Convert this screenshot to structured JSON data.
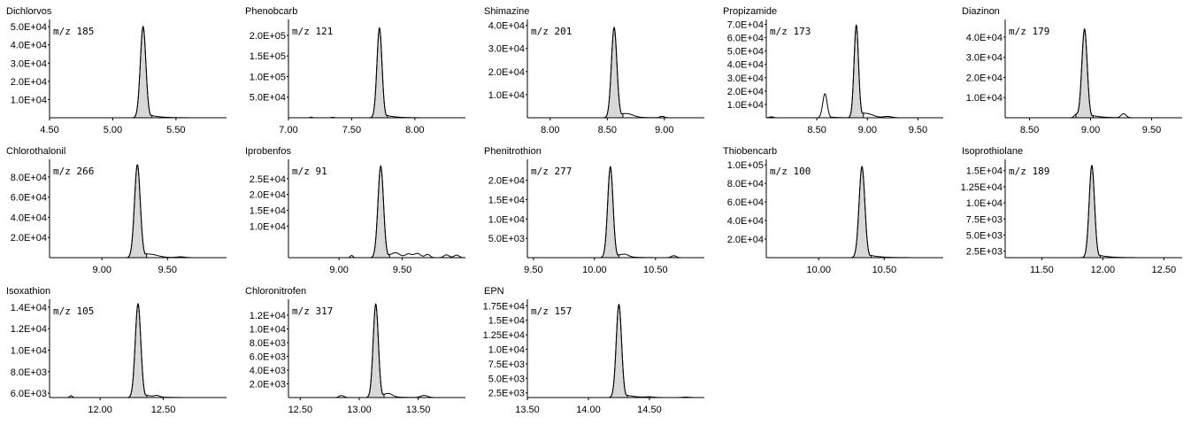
{
  "chart_data": [
    {
      "type": "line",
      "title": "Dichlorvos",
      "mz": "m/z 185",
      "xlim": [
        4.5,
        5.9
      ],
      "xticks": [
        4.5,
        5.0,
        5.5
      ],
      "xtick_labels": [
        "4.50",
        "5.00",
        "5.50"
      ],
      "ylim": [
        0,
        52000
      ],
      "yticks": [
        10000,
        20000,
        30000,
        40000,
        50000
      ],
      "ytick_labels": [
        "1.0E+04",
        "2.0E+04",
        "3.0E+04",
        "4.0E+04",
        "5.0E+04"
      ],
      "peaks": [
        {
          "rt": 5.24,
          "height": 50000,
          "width": 0.022,
          "filled": true
        }
      ],
      "ripples": []
    },
    {
      "type": "line",
      "title": "Phenobcarb",
      "mz": "m/z 121",
      "xlim": [
        7.0,
        8.4
      ],
      "xticks": [
        7.0,
        7.5,
        8.0
      ],
      "xtick_labels": [
        "7.00",
        "7.50",
        "8.00"
      ],
      "ylim": [
        0,
        230000
      ],
      "yticks": [
        50000,
        100000,
        150000,
        200000
      ],
      "ytick_labels": [
        "5.0E+04",
        "1.0E+05",
        "1.5E+05",
        "2.0E+05"
      ],
      "peaks": [
        {
          "rt": 7.72,
          "height": 218000,
          "width": 0.02,
          "filled": true
        }
      ],
      "ripples": [
        {
          "rt": 7.18,
          "height": 1500,
          "width": 0.01
        },
        {
          "rt": 7.35,
          "height": 1200,
          "width": 0.01
        }
      ]
    },
    {
      "type": "line",
      "title": "Shimazine",
      "mz": "m/z 201",
      "xlim": [
        7.8,
        9.35
      ],
      "xticks": [
        8.0,
        8.5,
        9.0
      ],
      "xtick_labels": [
        "8.00",
        "8.50",
        "9.00"
      ],
      "ylim": [
        0,
        41000
      ],
      "yticks": [
        10000,
        20000,
        30000,
        40000
      ],
      "ytick_labels": [
        "1.0E+04",
        "2.0E+04",
        "3.0E+04",
        "4.0E+04"
      ],
      "peaks": [
        {
          "rt": 8.56,
          "height": 39000,
          "width": 0.024,
          "filled": true
        }
      ],
      "ripples": [
        {
          "rt": 8.68,
          "height": 1200,
          "width": 0.05
        },
        {
          "rt": 8.98,
          "height": 600,
          "width": 0.02
        }
      ]
    },
    {
      "type": "line",
      "title": "Propizamide",
      "mz": "m/z 173",
      "xlim": [
        8.0,
        9.75
      ],
      "xticks": [
        8.5,
        9.0,
        9.5
      ],
      "xtick_labels": [
        "8.50",
        "9.00",
        "9.50"
      ],
      "ylim": [
        0,
        71000
      ],
      "yticks": [
        10000,
        20000,
        30000,
        40000,
        50000,
        60000,
        70000
      ],
      "ytick_labels": [
        "1.0E+04",
        "2.0E+04",
        "3.0E+04",
        "4.0E+04",
        "5.0E+04",
        "6.0E+04",
        "7.0E+04"
      ],
      "peaks": [
        {
          "rt": 8.58,
          "height": 18000,
          "width": 0.022,
          "filled": false
        },
        {
          "rt": 8.89,
          "height": 69000,
          "width": 0.022,
          "filled": true
        }
      ],
      "ripples": [
        {
          "rt": 9.0,
          "height": 2200,
          "width": 0.06
        },
        {
          "rt": 9.2,
          "height": 900,
          "width": 0.04
        },
        {
          "rt": 8.05,
          "height": 700,
          "width": 0.02
        }
      ]
    },
    {
      "type": "line",
      "title": "Diazinon",
      "mz": "m/z 179",
      "xlim": [
        8.3,
        9.75
      ],
      "xticks": [
        8.5,
        9.0,
        9.5
      ],
      "xtick_labels": [
        "8.50",
        "9.00",
        "9.50"
      ],
      "ylim": [
        0,
        47000
      ],
      "yticks": [
        10000,
        20000,
        30000,
        40000
      ],
      "ytick_labels": [
        "1.0E+04",
        "2.0E+04",
        "3.0E+04",
        "4.0E+04"
      ],
      "peaks": [
        {
          "rt": 8.95,
          "height": 44000,
          "width": 0.022,
          "filled": true
        }
      ],
      "ripples": [
        {
          "rt": 8.88,
          "height": 1500,
          "width": 0.015
        },
        {
          "rt": 9.27,
          "height": 2000,
          "width": 0.02
        }
      ]
    },
    {
      "type": "line",
      "title": "Chlorothalonil",
      "mz": "m/z 266",
      "xlim": [
        8.6,
        9.95
      ],
      "xticks": [
        9.0,
        9.5
      ],
      "xtick_labels": [
        "9.00",
        "9.50"
      ],
      "ylim": [
        0,
        94000
      ],
      "yticks": [
        20000,
        40000,
        60000,
        80000
      ],
      "ytick_labels": [
        "2.0E+04",
        "4.0E+04",
        "6.0E+04",
        "8.0E+04"
      ],
      "peaks": [
        {
          "rt": 9.27,
          "height": 92000,
          "width": 0.022,
          "filled": true
        }
      ],
      "ripples": [
        {
          "rt": 9.38,
          "height": 2000,
          "width": 0.05
        },
        {
          "rt": 9.6,
          "height": 800,
          "width": 0.03
        }
      ]
    },
    {
      "type": "line",
      "title": "Iprobenfos",
      "mz": "m/z 91",
      "xlim": [
        8.6,
        10.0
      ],
      "xticks": [
        9.0,
        9.5
      ],
      "xtick_labels": [
        "9.00",
        "9.50"
      ],
      "ylim": [
        0,
        30000
      ],
      "yticks": [
        10000,
        15000,
        20000,
        25000
      ],
      "ytick_labels": [
        "1.0E+04",
        "1.5E+04",
        "2.0E+04",
        "2.5E+04"
      ],
      "peaks": [
        {
          "rt": 9.33,
          "height": 29000,
          "width": 0.022,
          "filled": true
        }
      ],
      "ripples": [
        {
          "rt": 9.1,
          "height": 700,
          "width": 0.01
        },
        {
          "rt": 9.45,
          "height": 1200,
          "width": 0.03
        },
        {
          "rt": 9.55,
          "height": 1100,
          "width": 0.025
        },
        {
          "rt": 9.62,
          "height": 1300,
          "width": 0.025
        },
        {
          "rt": 9.7,
          "height": 1000,
          "width": 0.02
        },
        {
          "rt": 9.85,
          "height": 900,
          "width": 0.02
        },
        {
          "rt": 9.93,
          "height": 800,
          "width": 0.02
        }
      ]
    },
    {
      "type": "line",
      "title": "Phenitrothion",
      "mz": "m/z 277",
      "xlim": [
        9.45,
        10.9
      ],
      "xticks": [
        9.5,
        10.0,
        10.5
      ],
      "xtick_labels": [
        "9.50",
        "10.00",
        "10.50"
      ],
      "ylim": [
        0,
        24500
      ],
      "yticks": [
        5000,
        10000,
        15000,
        20000
      ],
      "ytick_labels": [
        "5.0E+03",
        "1.0E+04",
        "1.5E+04",
        "2.0E+04"
      ],
      "peaks": [
        {
          "rt": 10.13,
          "height": 23500,
          "width": 0.022,
          "filled": true
        }
      ],
      "ripples": [
        {
          "rt": 10.25,
          "height": 600,
          "width": 0.03
        },
        {
          "rt": 10.65,
          "height": 500,
          "width": 0.02
        }
      ]
    },
    {
      "type": "line",
      "title": "Thiobencarb",
      "mz": "m/z 100",
      "xlim": [
        9.6,
        10.95
      ],
      "xticks": [
        10.0,
        10.5
      ],
      "xtick_labels": [
        "10.00",
        "10.50"
      ],
      "ylim": [
        0,
        102000
      ],
      "yticks": [
        20000,
        40000,
        60000,
        80000,
        100000
      ],
      "ytick_labels": [
        "2.0E+04",
        "4.0E+04",
        "6.0E+04",
        "8.0E+04",
        "1.0E+05"
      ],
      "peaks": [
        {
          "rt": 10.33,
          "height": 98000,
          "width": 0.022,
          "filled": true
        }
      ],
      "ripples": []
    },
    {
      "type": "line",
      "title": "Isoprothiolane",
      "mz": "m/z 189",
      "xlim": [
        11.2,
        12.65
      ],
      "xticks": [
        11.5,
        12.0,
        12.5
      ],
      "xtick_labels": [
        "11.50",
        "12.00",
        "12.50"
      ],
      "ylim": [
        1500,
        16200
      ],
      "yticks": [
        2500,
        5000,
        7500,
        10000,
        12500,
        15000
      ],
      "ytick_labels": [
        "2.5E+03",
        "5.0E+03",
        "7.5E+03",
        "1.0E+04",
        "1.25E+04",
        "1.5E+04"
      ],
      "peaks": [
        {
          "rt": 11.91,
          "height": 15800,
          "width": 0.022,
          "filled": true
        }
      ],
      "ripples": []
    },
    {
      "type": "line",
      "title": "Isoxathion",
      "mz": "m/z 105",
      "xlim": [
        11.6,
        13.0
      ],
      "xticks": [
        12.0,
        12.5
      ],
      "xtick_labels": [
        "12.00",
        "12.50"
      ],
      "ylim": [
        5600,
        14400
      ],
      "yticks": [
        6000,
        8000,
        10000,
        12000,
        14000
      ],
      "ytick_labels": [
        "6.0E+03",
        "8.0E+03",
        "1.0E+04",
        "1.2E+04",
        "1.4E+04"
      ],
      "peaks": [
        {
          "rt": 12.3,
          "height": 14300,
          "width": 0.022,
          "filled": true
        }
      ],
      "ripples": [
        {
          "rt": 11.77,
          "height": 6300,
          "width": 0.01
        },
        {
          "rt": 12.45,
          "height": 6100,
          "width": 0.02
        }
      ]
    },
    {
      "type": "line",
      "title": "Chloronitrofen",
      "mz": "m/z 317",
      "xlim": [
        12.4,
        13.9
      ],
      "xticks": [
        12.5,
        13.0,
        13.5
      ],
      "xtick_labels": [
        "12.50",
        "13.00",
        "13.50"
      ],
      "ylim": [
        0,
        13800
      ],
      "yticks": [
        2000,
        4000,
        6000,
        8000,
        10000,
        12000
      ],
      "ytick_labels": [
        "2.0E+03",
        "4.0E+03",
        "6.0E+03",
        "8.0E+03",
        "1.0E+04",
        "1.2E+04"
      ],
      "peaks": [
        {
          "rt": 13.14,
          "height": 13600,
          "width": 0.022,
          "filled": true
        }
      ],
      "ripples": [
        {
          "rt": 12.85,
          "height": 300,
          "width": 0.02
        },
        {
          "rt": 13.25,
          "height": 400,
          "width": 0.03
        },
        {
          "rt": 13.55,
          "height": 300,
          "width": 0.03
        }
      ]
    },
    {
      "type": "line",
      "title": "EPN",
      "mz": "m/z 157",
      "xlim": [
        13.5,
        14.95
      ],
      "xticks": [
        13.5,
        14.0,
        14.5
      ],
      "xtick_labels": [
        "13.50",
        "14.00",
        "14.50"
      ],
      "ylim": [
        1700,
        18000
      ],
      "yticks": [
        2500,
        5000,
        7500,
        10000,
        12500,
        15000,
        17500
      ],
      "ytick_labels": [
        "2.5E+03",
        "5.0E+03",
        "7.5E+03",
        "1.0E+04",
        "1.25E+04",
        "1.5E+04",
        "1.75E+04"
      ],
      "peaks": [
        {
          "rt": 14.25,
          "height": 17700,
          "width": 0.022,
          "filled": true
        }
      ],
      "ripples": [
        {
          "rt": 14.5,
          "height": 2100,
          "width": 0.03
        },
        {
          "rt": 14.8,
          "height": 2000,
          "width": 0.03
        }
      ]
    }
  ]
}
